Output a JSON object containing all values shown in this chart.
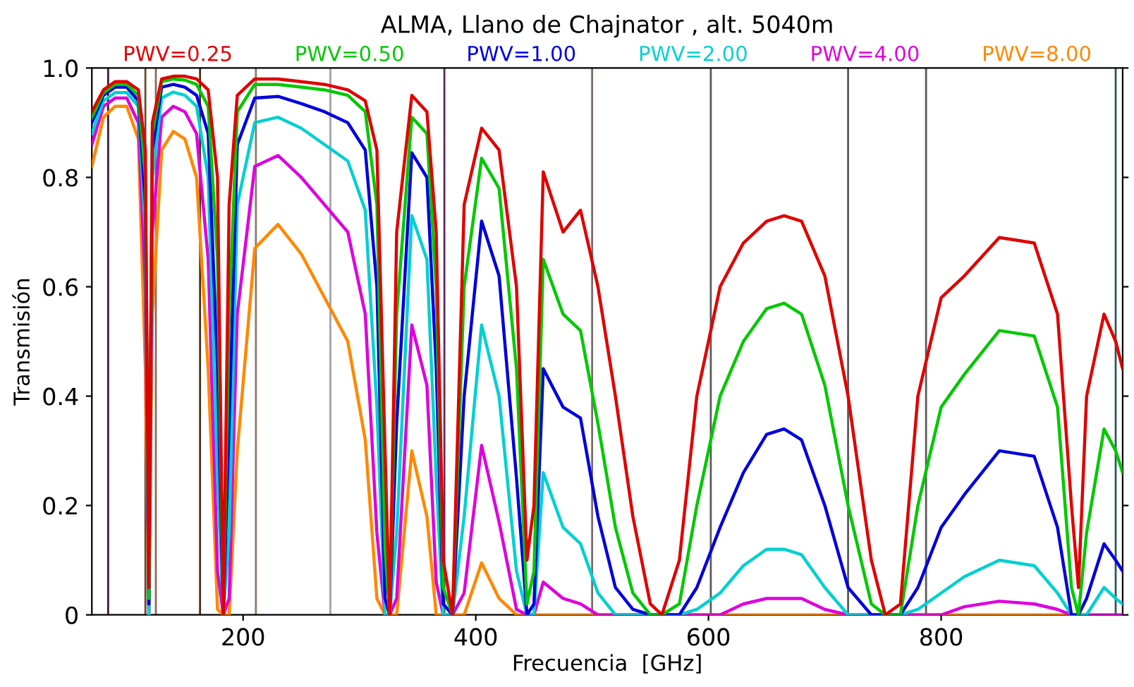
{
  "chart_data": {
    "type": "line",
    "title": "ALMA, Llano de Chajnator , alt. 5040m",
    "xlabel": "Frecuencia  [GHz]",
    "ylabel": "Transmisión",
    "x": [
      70,
      80,
      90,
      100,
      110,
      116,
      119,
      122,
      130,
      140,
      150,
      160,
      170,
      178,
      183,
      188,
      195,
      210,
      230,
      250,
      270,
      290,
      305,
      315,
      322,
      326,
      332,
      345,
      358,
      366,
      372,
      380,
      390,
      405,
      420,
      435,
      444,
      450,
      458,
      475,
      490,
      505,
      520,
      535,
      550,
      560,
      575,
      590,
      610,
      630,
      650,
      665,
      680,
      700,
      720,
      740,
      752,
      765,
      780,
      800,
      820,
      850,
      880,
      900,
      912,
      918,
      925,
      940,
      950,
      956
    ],
    "series": [
      {
        "name": "PWV=0.25",
        "color": "#e00000",
        "values": [
          0.92,
          0.96,
          0.975,
          0.975,
          0.96,
          0.85,
          0.05,
          0.9,
          0.98,
          0.985,
          0.985,
          0.98,
          0.96,
          0.8,
          0.0,
          0.75,
          0.95,
          0.98,
          0.98,
          0.975,
          0.97,
          0.96,
          0.94,
          0.85,
          0.3,
          0.0,
          0.7,
          0.95,
          0.92,
          0.7,
          0.1,
          0.0,
          0.75,
          0.89,
          0.85,
          0.6,
          0.1,
          0.2,
          0.81,
          0.7,
          0.74,
          0.6,
          0.4,
          0.18,
          0.02,
          0.0,
          0.1,
          0.4,
          0.6,
          0.68,
          0.72,
          0.73,
          0.72,
          0.62,
          0.4,
          0.1,
          0.0,
          0.02,
          0.4,
          0.58,
          0.62,
          0.69,
          0.68,
          0.55,
          0.2,
          0.05,
          0.4,
          0.55,
          0.5,
          0.45
        ]
      },
      {
        "name": "PWV=0.50",
        "color": "#00c800",
        "values": [
          0.91,
          0.955,
          0.97,
          0.97,
          0.95,
          0.8,
          0.03,
          0.88,
          0.975,
          0.98,
          0.978,
          0.97,
          0.93,
          0.65,
          0.0,
          0.55,
          0.92,
          0.97,
          0.97,
          0.965,
          0.96,
          0.95,
          0.92,
          0.75,
          0.12,
          0.0,
          0.55,
          0.91,
          0.88,
          0.6,
          0.05,
          0.0,
          0.6,
          0.835,
          0.78,
          0.45,
          0.02,
          0.08,
          0.65,
          0.55,
          0.52,
          0.35,
          0.16,
          0.04,
          0.0,
          0.0,
          0.02,
          0.2,
          0.4,
          0.5,
          0.56,
          0.57,
          0.55,
          0.42,
          0.2,
          0.02,
          0.0,
          0.0,
          0.2,
          0.38,
          0.44,
          0.52,
          0.51,
          0.38,
          0.05,
          0.0,
          0.15,
          0.34,
          0.3,
          0.26
        ]
      },
      {
        "name": "PWV=1.00",
        "color": "#0000dd",
        "values": [
          0.9,
          0.95,
          0.965,
          0.965,
          0.94,
          0.75,
          0.02,
          0.85,
          0.965,
          0.97,
          0.965,
          0.95,
          0.88,
          0.45,
          0.0,
          0.35,
          0.86,
          0.945,
          0.948,
          0.935,
          0.92,
          0.9,
          0.85,
          0.6,
          0.03,
          0.0,
          0.35,
          0.845,
          0.8,
          0.45,
          0.02,
          0.0,
          0.4,
          0.72,
          0.62,
          0.25,
          0.0,
          0.02,
          0.45,
          0.38,
          0.36,
          0.18,
          0.05,
          0.01,
          0.0,
          0.0,
          0.0,
          0.05,
          0.16,
          0.26,
          0.33,
          0.34,
          0.32,
          0.2,
          0.05,
          0.0,
          0.0,
          0.0,
          0.05,
          0.16,
          0.22,
          0.3,
          0.29,
          0.16,
          0.0,
          0.0,
          0.03,
          0.13,
          0.1,
          0.08
        ]
      },
      {
        "name": "PWV=2.00",
        "color": "#00d0d0",
        "values": [
          0.88,
          0.94,
          0.955,
          0.955,
          0.93,
          0.7,
          0.0,
          0.8,
          0.945,
          0.956,
          0.95,
          0.93,
          0.8,
          0.25,
          0.0,
          0.15,
          0.75,
          0.9,
          0.91,
          0.89,
          0.86,
          0.83,
          0.74,
          0.38,
          0.0,
          0.0,
          0.15,
          0.73,
          0.65,
          0.25,
          0.0,
          0.0,
          0.18,
          0.53,
          0.4,
          0.08,
          0.0,
          0.0,
          0.26,
          0.16,
          0.13,
          0.04,
          0.0,
          0.0,
          0.0,
          0.0,
          0.0,
          0.01,
          0.04,
          0.09,
          0.12,
          0.12,
          0.11,
          0.05,
          0.0,
          0.0,
          0.0,
          0.0,
          0.01,
          0.04,
          0.07,
          0.1,
          0.09,
          0.04,
          0.0,
          0.0,
          0.0,
          0.05,
          0.03,
          0.02
        ]
      },
      {
        "name": "PWV=4.00",
        "color": "#dd00dd",
        "values": [
          0.86,
          0.93,
          0.945,
          0.945,
          0.9,
          0.6,
          0.0,
          0.7,
          0.91,
          0.93,
          0.92,
          0.88,
          0.65,
          0.08,
          0.0,
          0.03,
          0.55,
          0.82,
          0.84,
          0.8,
          0.75,
          0.7,
          0.55,
          0.15,
          0.0,
          0.0,
          0.03,
          0.53,
          0.42,
          0.06,
          0.0,
          0.0,
          0.04,
          0.31,
          0.17,
          0.01,
          0.0,
          0.0,
          0.06,
          0.03,
          0.02,
          0.0,
          0.0,
          0.0,
          0.0,
          0.0,
          0.0,
          0.0,
          0.0,
          0.02,
          0.03,
          0.03,
          0.03,
          0.01,
          0.0,
          0.0,
          0.0,
          0.0,
          0.0,
          0.0,
          0.015,
          0.025,
          0.02,
          0.01,
          0.0,
          0.0,
          0.0,
          0.0,
          0.0,
          0.0
        ]
      },
      {
        "name": "PWV=8.00",
        "color": "#ff8800",
        "values": [
          0.82,
          0.91,
          0.93,
          0.93,
          0.87,
          0.45,
          0.0,
          0.55,
          0.85,
          0.884,
          0.87,
          0.8,
          0.45,
          0.01,
          0.0,
          0.0,
          0.3,
          0.67,
          0.714,
          0.66,
          0.58,
          0.5,
          0.32,
          0.03,
          0.0,
          0.0,
          0.0,
          0.3,
          0.18,
          0.0,
          0.0,
          0.0,
          0.0,
          0.095,
          0.03,
          0.0,
          0.0,
          0.0,
          0.0,
          0.0,
          0.0,
          0.0,
          0.0,
          0.0,
          0.0,
          0.0,
          0.0,
          0.0,
          0.0,
          0.0,
          0.0,
          0.0,
          0.0,
          0.0,
          0.0,
          0.0,
          0.0,
          0.0,
          0.0,
          0.0,
          0.0,
          0.0,
          0.0,
          0.0,
          0.0,
          0.0,
          null,
          null,
          null,
          null
        ]
      }
    ],
    "ref_lines": [
      {
        "axis": "x",
        "value": 84,
        "color": "#3a1a3a"
      },
      {
        "axis": "x",
        "value": 116,
        "color": "#6b4a2a"
      },
      {
        "axis": "x",
        "value": 125,
        "color": "#8a6a5a"
      },
      {
        "axis": "x",
        "value": 163,
        "color": "#4a3010"
      },
      {
        "axis": "x",
        "value": 211,
        "color": "#8a7a6a"
      },
      {
        "axis": "x",
        "value": 275,
        "color": "#a0a0b0"
      },
      {
        "axis": "x",
        "value": 373,
        "color": "#5a2a5a"
      },
      {
        "axis": "x",
        "value": 500,
        "color": "#7a6a6a"
      },
      {
        "axis": "x",
        "value": 602,
        "color": "#5a5a5a"
      },
      {
        "axis": "x",
        "value": 720,
        "color": "#5a5a5a"
      },
      {
        "axis": "x",
        "value": 787,
        "color": "#5a5a5a"
      },
      {
        "axis": "x",
        "value": 950,
        "color": "#2a5a5a"
      }
    ],
    "xlim": [
      70,
      956
    ],
    "xticks": [
      200,
      400,
      600,
      800
    ],
    "ylim": [
      0,
      1.0
    ],
    "yticks": [
      0,
      0.2,
      0.4,
      0.6,
      0.8,
      {
        "value": 1.0,
        "label": "1.0"
      }
    ],
    "legend": "top",
    "grid": false,
    "marker": "none",
    "line_style": "solid"
  }
}
